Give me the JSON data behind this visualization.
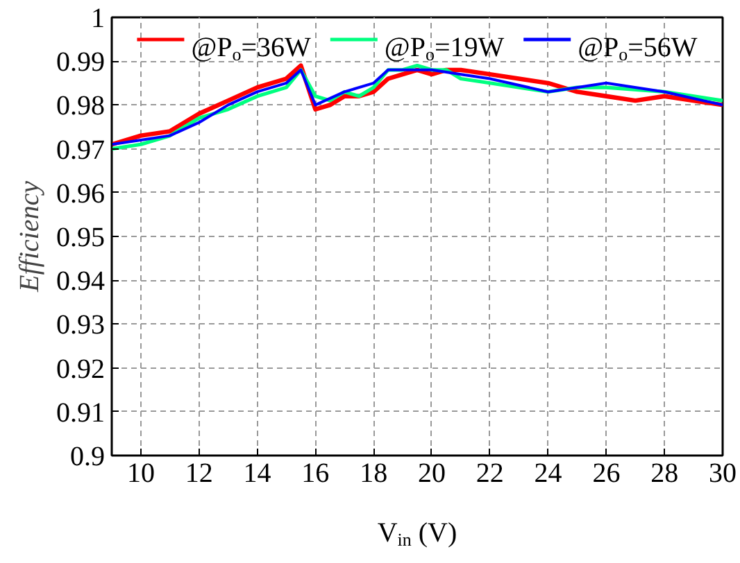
{
  "chart_data": {
    "type": "line",
    "xlabel": "V$_{in}$ (V)",
    "ylabel": "Efficiency",
    "xlim": [
      9,
      30
    ],
    "xticks": [
      10,
      12,
      14,
      16,
      18,
      20,
      22,
      24,
      26,
      28,
      30
    ],
    "ylim": [
      0.9,
      1
    ],
    "yticks": [
      0.9,
      0.91,
      0.92,
      0.93,
      0.94,
      0.95,
      0.96,
      0.97,
      0.98,
      0.99,
      1
    ],
    "grid": true,
    "legend": "top",
    "line_style": "solid",
    "series": [
      {
        "name": "@P$_{o}$=36W",
        "color": "#ff0000",
        "x": [
          9,
          10,
          11,
          12,
          13,
          14,
          15,
          15.5,
          16,
          16.5,
          17,
          17.5,
          18,
          18.5,
          19.5,
          20,
          20.5,
          21,
          22,
          24,
          25,
          26,
          27,
          28,
          30
        ],
        "values": [
          0.971,
          0.973,
          0.974,
          0.978,
          0.981,
          0.984,
          0.986,
          0.989,
          0.979,
          0.98,
          0.982,
          0.982,
          0.983,
          0.986,
          0.988,
          0.987,
          0.988,
          0.988,
          0.987,
          0.985,
          0.983,
          0.982,
          0.981,
          0.982,
          0.98
        ]
      },
      {
        "name": "@P$_{o}$=19W",
        "color": "#00ff80",
        "x": [
          9,
          10,
          11,
          12,
          13,
          14,
          15,
          15.5,
          16,
          16.5,
          17,
          17.5,
          18,
          18.5,
          19,
          19.5,
          20,
          20.5,
          21,
          22,
          24,
          25,
          26,
          28,
          30
        ],
        "values": [
          0.97,
          0.971,
          0.973,
          0.977,
          0.979,
          0.982,
          0.984,
          0.988,
          0.982,
          0.981,
          0.983,
          0.982,
          0.984,
          0.988,
          0.988,
          0.989,
          0.988,
          0.988,
          0.986,
          0.985,
          0.983,
          0.984,
          0.984,
          0.983,
          0.981
        ]
      },
      {
        "name": "@P$_{o}$=56W",
        "color": "#0000ff",
        "x": [
          9,
          10,
          11,
          12,
          13,
          14,
          15,
          15.5,
          16,
          17,
          18,
          18.5,
          19,
          20,
          21,
          22,
          24,
          26,
          28,
          30
        ],
        "values": [
          0.971,
          0.972,
          0.973,
          0.976,
          0.98,
          0.983,
          0.985,
          0.988,
          0.98,
          0.983,
          0.985,
          0.988,
          0.988,
          0.988,
          0.987,
          0.986,
          0.983,
          0.985,
          0.983,
          0.98
        ]
      }
    ]
  }
}
